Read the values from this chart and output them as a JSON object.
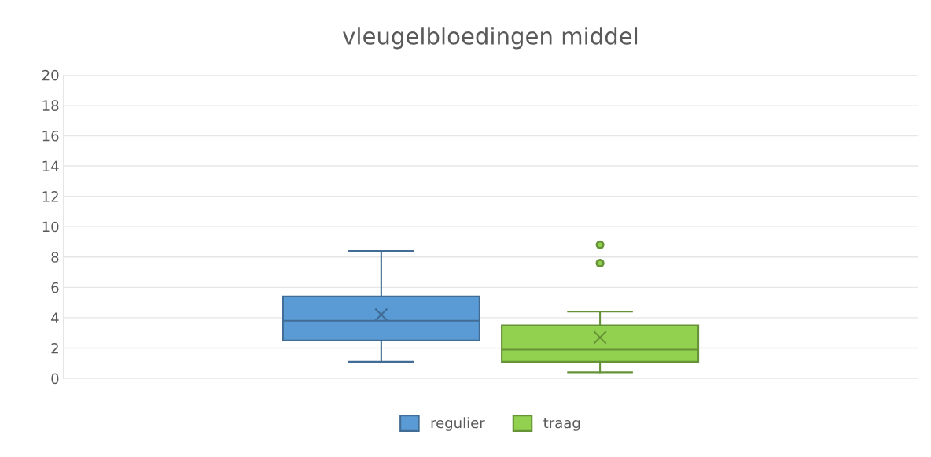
{
  "chart_data": {
    "type": "box",
    "title": "vleugelbloedingen middel",
    "categories": [
      null
    ],
    "series": [
      {
        "name": "regulier",
        "color": "#5b9bd5",
        "boxes": [
          {
            "low": 1.1,
            "q1": 2.5,
            "median": 3.8,
            "q3": 5.4,
            "high": 8.4,
            "mean": 4.2
          }
        ]
      },
      {
        "name": "traag",
        "color": "#92d050",
        "boxes": [
          {
            "low": 0.4,
            "q1": 1.1,
            "median": 1.9,
            "q3": 3.5,
            "high": 4.4,
            "mean": 2.7,
            "outliers": [
              7.6,
              8.8
            ]
          }
        ]
      }
    ],
    "ylim": [
      0,
      20
    ],
    "yticks": [
      0,
      2,
      4,
      6,
      8,
      10,
      12,
      14,
      16,
      18,
      20
    ],
    "grid": "y",
    "legend": "bottom",
    "marker": "cross"
  }
}
